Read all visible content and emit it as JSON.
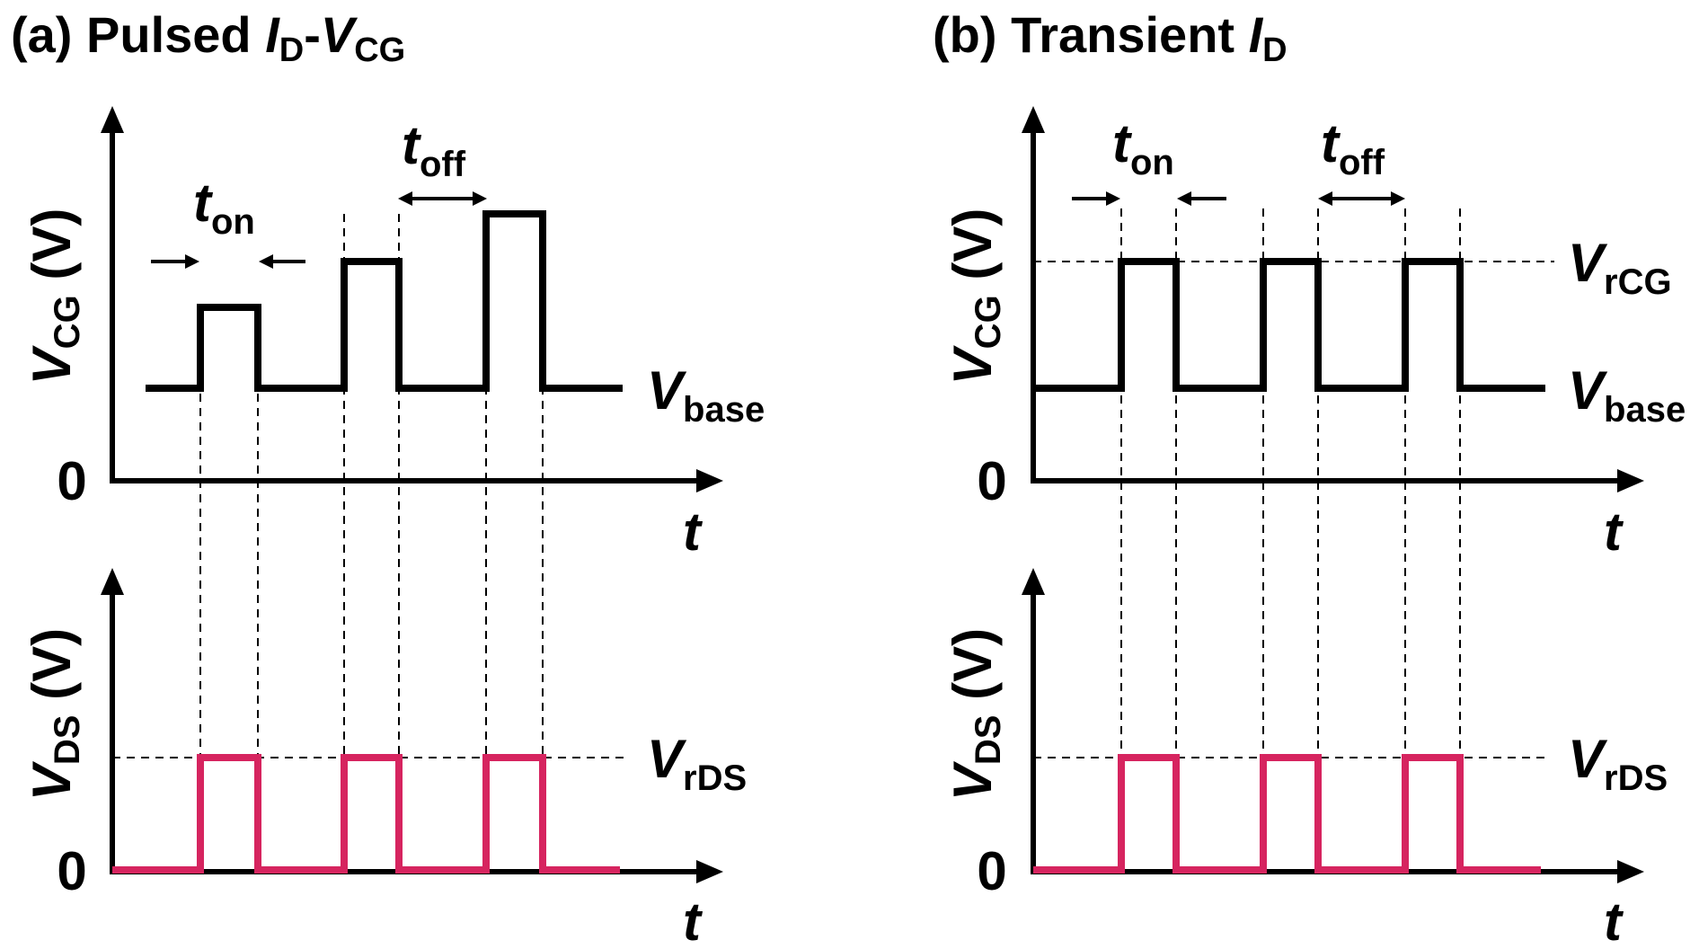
{
  "panel_a": {
    "label": "(a)",
    "title_main": "Pulsed ",
    "title_i": "I",
    "title_i_sub": "D",
    "title_dash": "-",
    "title_v": "V",
    "title_v_sub": "CG"
  },
  "panel_b": {
    "label": "(b)",
    "title_main": "Transient ",
    "title_i": "I",
    "title_i_sub": "D"
  },
  "labels": {
    "v": "V",
    "cg": "CG",
    "ds": "DS",
    "unit": " (V)",
    "zero": "0",
    "t": "t",
    "on": "on",
    "off": "off",
    "base": "base",
    "rcg": "rCG",
    "rds": "rDS"
  },
  "colors": {
    "vcg": "#000000",
    "vds": "#d6245f"
  }
}
